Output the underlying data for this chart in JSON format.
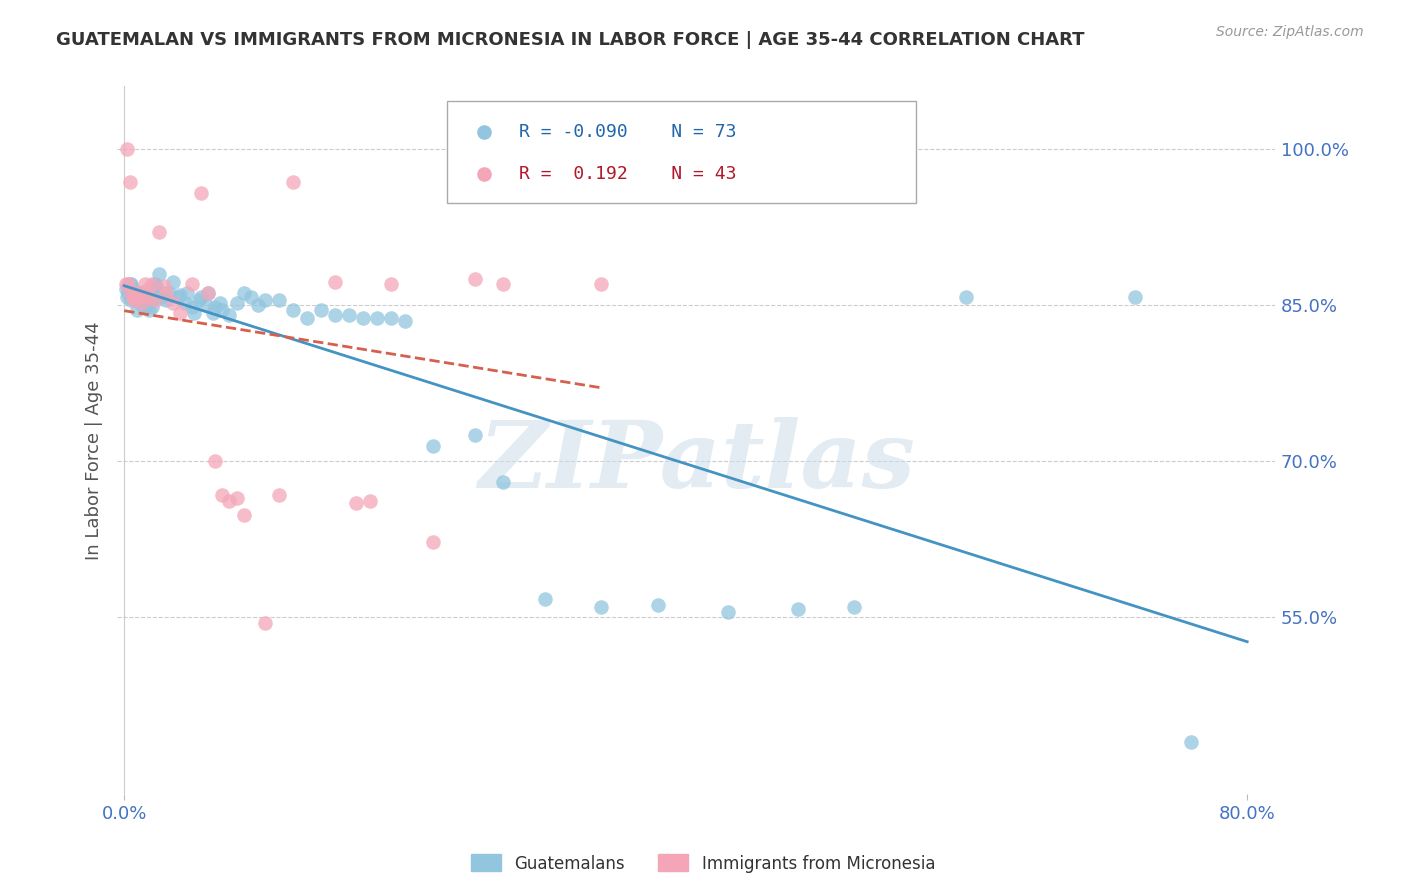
{
  "title": "GUATEMALAN VS IMMIGRANTS FROM MICRONESIA IN LABOR FORCE | AGE 35-44 CORRELATION CHART",
  "source": "Source: ZipAtlas.com",
  "ylabel": "In Labor Force | Age 35-44",
  "legend_labels": [
    "Guatemalans",
    "Immigrants from Micronesia"
  ],
  "blue_r": "-0.090",
  "blue_n": "73",
  "pink_r": "0.192",
  "pink_n": "43",
  "blue_color": "#92c5de",
  "pink_color": "#f4a6b8",
  "blue_line_color": "#4393c3",
  "pink_line_color": "#d6604d",
  "y_ticks_right": [
    0.55,
    0.7,
    0.85,
    1.0
  ],
  "y_tick_labels_right": [
    "55.0%",
    "70.0%",
    "85.0%",
    "100.0%"
  ],
  "xlim": [
    -0.005,
    0.82
  ],
  "ylim": [
    0.38,
    1.06
  ],
  "blue_x": [
    0.001,
    0.002,
    0.003,
    0.004,
    0.005,
    0.005,
    0.006,
    0.007,
    0.008,
    0.009,
    0.01,
    0.011,
    0.012,
    0.013,
    0.014,
    0.015,
    0.016,
    0.017,
    0.018,
    0.019,
    0.02,
    0.021,
    0.022,
    0.023,
    0.024,
    0.025,
    0.027,
    0.028,
    0.03,
    0.032,
    0.035,
    0.038,
    0.04,
    0.043,
    0.045,
    0.048,
    0.05,
    0.053,
    0.055,
    0.058,
    0.06,
    0.063,
    0.065,
    0.068,
    0.07,
    0.075,
    0.08,
    0.085,
    0.09,
    0.095,
    0.1,
    0.11,
    0.12,
    0.13,
    0.14,
    0.15,
    0.16,
    0.17,
    0.18,
    0.19,
    0.2,
    0.22,
    0.25,
    0.27,
    0.3,
    0.34,
    0.38,
    0.43,
    0.48,
    0.52,
    0.6,
    0.72,
    0.76
  ],
  "blue_y": [
    0.865,
    0.858,
    0.862,
    0.87,
    0.855,
    0.87,
    0.865,
    0.86,
    0.855,
    0.845,
    0.858,
    0.852,
    0.862,
    0.857,
    0.848,
    0.852,
    0.86,
    0.85,
    0.845,
    0.855,
    0.848,
    0.865,
    0.87,
    0.868,
    0.858,
    0.88,
    0.858,
    0.862,
    0.855,
    0.862,
    0.872,
    0.858,
    0.86,
    0.852,
    0.862,
    0.848,
    0.842,
    0.855,
    0.858,
    0.85,
    0.862,
    0.842,
    0.848,
    0.852,
    0.845,
    0.84,
    0.852,
    0.862,
    0.858,
    0.85,
    0.855,
    0.855,
    0.845,
    0.838,
    0.845,
    0.84,
    0.84,
    0.838,
    0.838,
    0.838,
    0.835,
    0.715,
    0.725,
    0.68,
    0.568,
    0.56,
    0.562,
    0.555,
    0.558,
    0.56,
    0.858,
    0.858,
    0.43
  ],
  "pink_x": [
    0.001,
    0.002,
    0.003,
    0.004,
    0.005,
    0.006,
    0.007,
    0.008,
    0.009,
    0.01,
    0.011,
    0.012,
    0.013,
    0.015,
    0.017,
    0.018,
    0.02,
    0.022,
    0.025,
    0.028,
    0.03,
    0.035,
    0.04,
    0.048,
    0.055,
    0.06,
    0.065,
    0.07,
    0.075,
    0.08,
    0.085,
    0.1,
    0.11,
    0.12,
    0.15,
    0.165,
    0.175,
    0.19,
    0.22,
    0.25,
    0.265,
    0.27,
    0.34
  ],
  "pink_y": [
    0.87,
    1.0,
    0.87,
    0.968,
    0.862,
    0.858,
    0.855,
    0.858,
    0.862,
    0.858,
    0.862,
    0.858,
    0.852,
    0.87,
    0.865,
    0.858,
    0.87,
    0.855,
    0.92,
    0.868,
    0.862,
    0.852,
    0.842,
    0.87,
    0.958,
    0.862,
    0.7,
    0.668,
    0.662,
    0.665,
    0.648,
    0.545,
    0.668,
    0.968,
    0.872,
    0.66,
    0.662,
    0.87,
    0.622,
    0.875,
    1.0,
    0.87,
    0.87
  ],
  "watermark_text": "ZIPatlas",
  "background_color": "#ffffff",
  "grid_color": "#cccccc",
  "grid_style": "--"
}
